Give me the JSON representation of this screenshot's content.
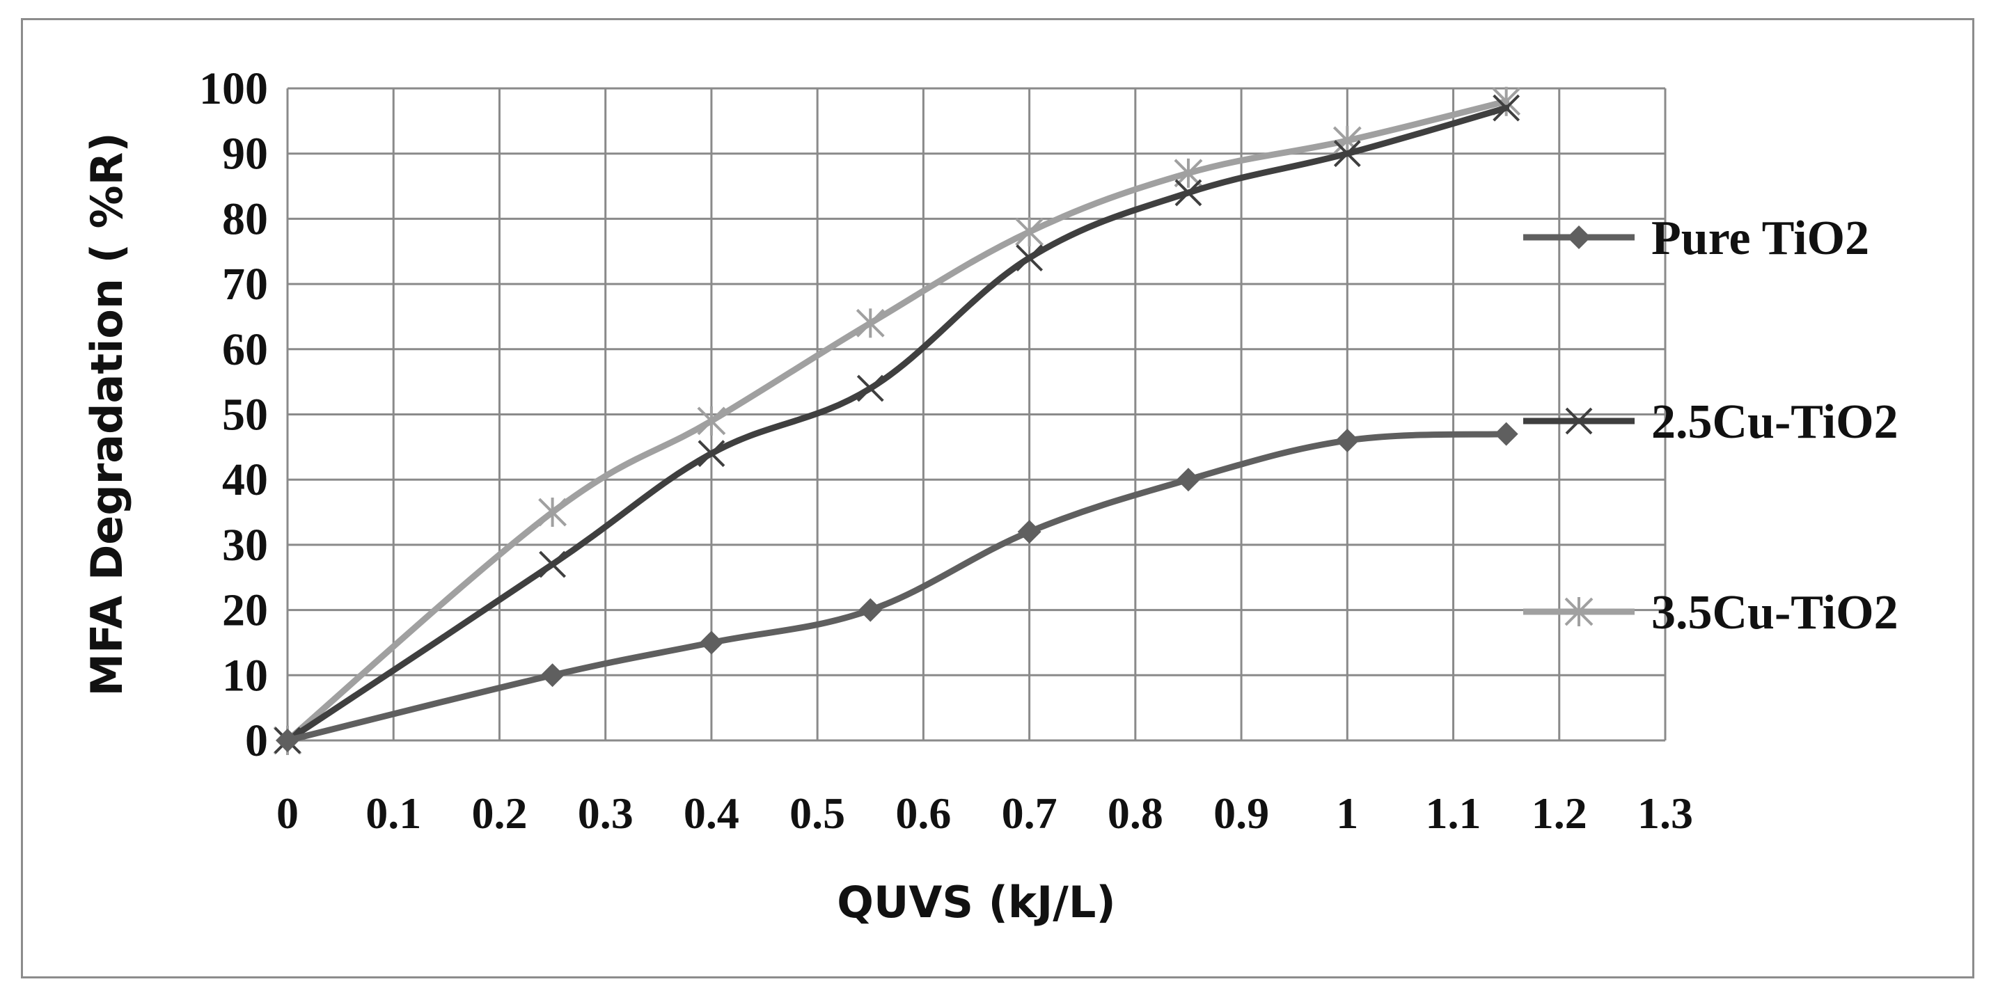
{
  "chart_data": {
    "type": "line",
    "title": "",
    "xlabel": "QUVS (kJ/L)",
    "ylabel": "MFA Degradation ( %R)",
    "xlim": [
      0,
      1.3
    ],
    "ylim": [
      0,
      100
    ],
    "x_ticks": [
      "0",
      "0.1",
      "0.2",
      "0.3",
      "0.4",
      "0.5",
      "0.6",
      "0.7",
      "0.8",
      "0.9",
      "1",
      "1.1",
      "1.2",
      "1.3"
    ],
    "y_ticks": [
      "0",
      "10",
      "20",
      "30",
      "40",
      "50",
      "60",
      "70",
      "80",
      "90",
      "100"
    ],
    "grid": true,
    "legend_position": "right",
    "series": [
      {
        "name": "Pure TiO2",
        "marker": "diamond",
        "color": "#5f5f5f",
        "x": [
          0,
          0.25,
          0.4,
          0.55,
          0.7,
          0.85,
          1.0,
          1.15
        ],
        "y": [
          0,
          10,
          15,
          20,
          32,
          40,
          46,
          47
        ]
      },
      {
        "name": "2.5Cu-TiO2",
        "marker": "x",
        "color": "#3f3f3f",
        "x": [
          0,
          0.25,
          0.4,
          0.55,
          0.7,
          0.85,
          1.0,
          1.15
        ],
        "y": [
          0,
          27,
          44,
          54,
          74,
          84,
          90,
          97
        ]
      },
      {
        "name": "3.5Cu-TiO2",
        "marker": "star",
        "color": "#a0a0a0",
        "x": [
          0,
          0.25,
          0.4,
          0.55,
          0.7,
          0.85,
          1.0,
          1.15
        ],
        "y": [
          0,
          35,
          49,
          64,
          78,
          87,
          92,
          98
        ]
      }
    ]
  }
}
